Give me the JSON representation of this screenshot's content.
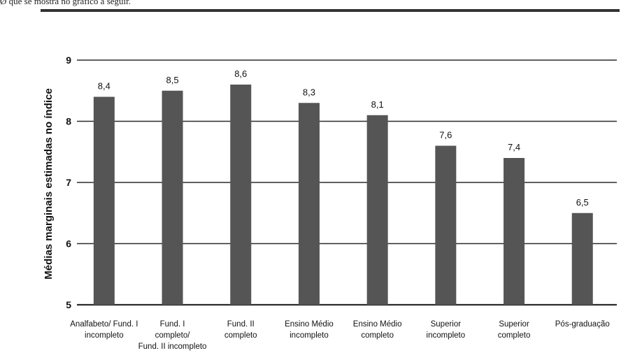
{
  "page": {
    "top_caption": "Ø que se mostra no gráfico a seguir."
  },
  "chart_data": {
    "type": "bar",
    "title": "",
    "xlabel": "",
    "ylabel": "Médias marginais estimadas no índice",
    "ylim": [
      5,
      9
    ],
    "yticks": [
      5,
      6,
      7,
      8,
      9
    ],
    "ytick_labels": [
      "5",
      "6",
      "7",
      "8",
      "9"
    ],
    "grid": true,
    "bar_color": "#555555",
    "categories": [
      [
        "Analfabeto/ Fund. I",
        "incompleto"
      ],
      [
        "Fund. I",
        "completo/",
        "Fund. II incompleto"
      ],
      [
        "Fund. II",
        "completo"
      ],
      [
        "Ensino Médio",
        "incompleto"
      ],
      [
        "Ensino Médio",
        "completo"
      ],
      [
        "Superior",
        "incompleto"
      ],
      [
        "Superior",
        "completo"
      ],
      [
        "Pós-graduação"
      ]
    ],
    "values": [
      8.4,
      8.5,
      8.6,
      8.3,
      8.1,
      7.6,
      7.4,
      6.5
    ],
    "data_labels": [
      "8,4",
      "8,5",
      "8,6",
      "8,3",
      "8,1",
      "7,6",
      "7,4",
      "6,5"
    ]
  }
}
